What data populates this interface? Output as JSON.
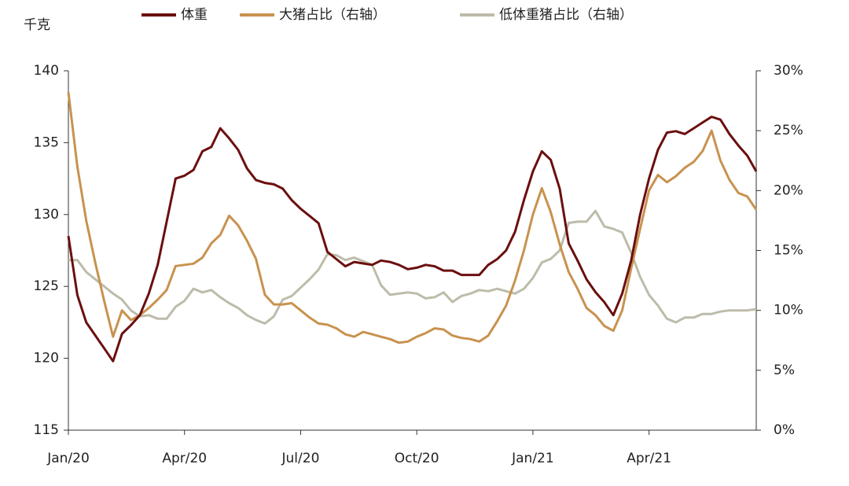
{
  "chart_data": {
    "type": "line",
    "y_label": "千克",
    "categories": [
      "Jan/20",
      null,
      null,
      null,
      null,
      null,
      null,
      null,
      null,
      null,
      null,
      null,
      null,
      "Apr/20",
      null,
      null,
      null,
      null,
      null,
      null,
      null,
      null,
      null,
      null,
      null,
      null,
      "Jul/20",
      null,
      null,
      null,
      null,
      null,
      null,
      null,
      null,
      null,
      null,
      null,
      null,
      "Oct/20",
      null,
      null,
      null,
      null,
      null,
      null,
      null,
      null,
      null,
      null,
      null,
      null,
      "Jan/21",
      null,
      null,
      null,
      null,
      null,
      null,
      null,
      null,
      null,
      null,
      null,
      null,
      "Apr/21",
      null,
      null,
      null,
      null,
      null,
      null,
      null,
      null,
      null,
      null,
      null,
      null
    ],
    "ylim": [
      115,
      140
    ],
    "yticks": [
      115,
      120,
      125,
      130,
      135,
      140
    ],
    "y2lim": [
      0,
      30
    ],
    "y2ticks": [
      {
        "value": 0,
        "label": "0%"
      },
      {
        "value": 5,
        "label": "5%"
      },
      {
        "value": 10,
        "label": "10%"
      },
      {
        "value": 15,
        "label": "15%"
      },
      {
        "value": 20,
        "label": "20%"
      },
      {
        "value": 25,
        "label": "25%"
      },
      {
        "value": 30,
        "label": "30%"
      }
    ],
    "grid": false,
    "series": [
      {
        "name": "体重",
        "color": "#6b0f0f",
        "values": [
          128.5,
          124.4,
          122.5,
          121.6,
          120.7,
          119.8,
          121.7,
          122.3,
          123.0,
          124.5,
          126.5,
          129.5,
          132.5,
          132.7,
          133.1,
          134.4,
          134.7,
          136.0,
          135.3,
          134.5,
          133.2,
          132.4,
          132.2,
          132.1,
          131.8,
          131.0,
          130.4,
          129.9,
          129.4,
          127.4,
          126.9,
          126.4,
          126.7,
          126.6,
          126.5,
          126.8,
          126.7,
          126.5,
          126.2,
          126.3,
          126.5,
          126.4,
          126.1,
          126.1,
          125.8,
          125.8,
          125.8,
          126.5,
          126.9,
          127.5,
          128.8,
          131.0,
          133.0,
          134.4,
          133.8,
          131.8,
          128.0,
          126.8,
          125.5,
          124.6,
          123.9,
          123.0,
          124.5,
          126.8,
          130.0,
          132.5,
          134.5,
          135.7,
          135.8,
          135.6,
          136.0,
          136.4,
          136.8,
          136.6,
          135.6,
          134.8,
          134.1,
          133.0
        ]
      },
      {
        "name": "大猪占比（右轴）",
        "color": "#c8924f",
        "axis": "y2",
        "values": [
          28.2,
          22.0,
          17.5,
          14.0,
          10.8,
          7.8,
          10.0,
          9.2,
          9.6,
          10.2,
          10.9,
          11.7,
          13.7,
          13.8,
          13.9,
          14.4,
          15.6,
          16.3,
          17.9,
          17.1,
          15.8,
          14.3,
          11.3,
          10.5,
          10.5,
          10.6,
          10.0,
          9.4,
          8.9,
          8.8,
          8.5,
          8.0,
          7.8,
          8.2,
          8.0,
          7.8,
          7.6,
          7.3,
          7.4,
          7.8,
          8.1,
          8.5,
          8.4,
          7.9,
          7.7,
          7.6,
          7.4,
          7.9,
          9.1,
          10.4,
          12.5,
          15.0,
          18.0,
          20.2,
          18.2,
          15.5,
          13.2,
          11.8,
          10.2,
          9.6,
          8.7,
          8.3,
          10.0,
          13.5,
          16.8,
          20.0,
          21.3,
          20.7,
          21.2,
          21.9,
          22.4,
          23.3,
          25.0,
          22.5,
          20.9,
          19.8,
          19.5,
          18.4
        ]
      },
      {
        "name": "低体重猪占比（右轴）",
        "color": "#bdbcaa",
        "axis": "y2",
        "values": [
          14.2,
          14.2,
          13.2,
          12.6,
          12.0,
          11.4,
          10.9,
          10.0,
          9.5,
          9.6,
          9.3,
          9.3,
          10.3,
          10.8,
          11.8,
          11.5,
          11.7,
          11.1,
          10.6,
          10.2,
          9.6,
          9.2,
          8.9,
          9.5,
          10.9,
          11.2,
          11.9,
          12.6,
          13.4,
          14.7,
          14.6,
          14.2,
          14.4,
          14.1,
          13.8,
          12.1,
          11.3,
          11.4,
          11.5,
          11.4,
          11.0,
          11.1,
          11.5,
          10.7,
          11.2,
          11.4,
          11.7,
          11.6,
          11.8,
          11.6,
          11.4,
          11.8,
          12.7,
          14.0,
          14.3,
          15.0,
          17.3,
          17.4,
          17.4,
          18.3,
          17.0,
          16.8,
          16.5,
          14.8,
          12.8,
          11.3,
          10.4,
          9.3,
          9.0,
          9.4,
          9.4,
          9.7,
          9.7,
          9.9,
          10.0,
          10.0,
          10.0,
          10.1
        ]
      }
    ]
  }
}
